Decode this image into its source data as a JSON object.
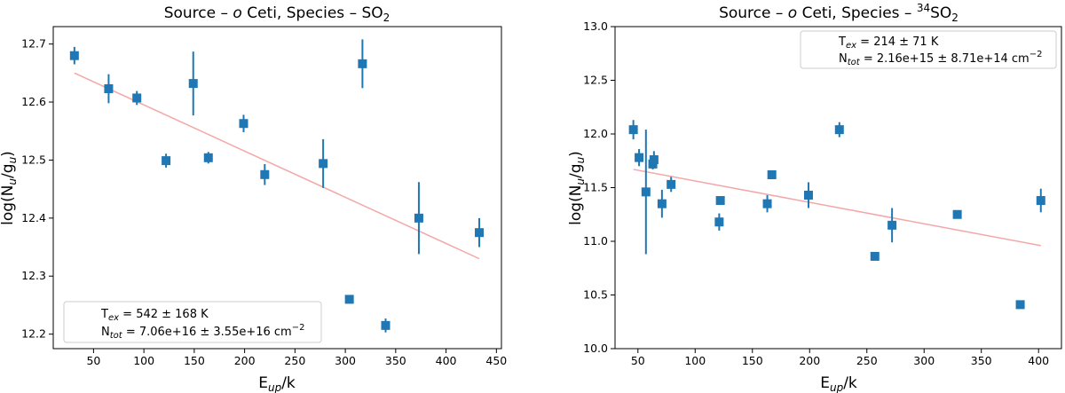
{
  "chart_data": [
    {
      "type": "scatter",
      "title": "Source – o Ceti, Species – SO2",
      "title_parts": {
        "prefix": "Source – ",
        "source": "o",
        "middle": " Ceti, Species – ",
        "species_sup": "",
        "species_main": "SO",
        "species_sub": "2"
      },
      "xlabel": "E_up/k",
      "xlabel_parts": {
        "main": "E",
        "sub": "up",
        "rest": "/k"
      },
      "ylabel": "log(N_u/g_u)",
      "ylabel_parts": {
        "a": "log(N",
        "sub1": "u",
        "b": "/g",
        "sub2": "u",
        "c": ")"
      },
      "xlim": [
        10,
        455
      ],
      "ylim": [
        12.175,
        12.73
      ],
      "xticks": [
        50,
        100,
        150,
        200,
        250,
        300,
        350,
        400,
        450
      ],
      "xtick_labels": [
        "50",
        "100",
        "150",
        "200",
        "250",
        "300",
        "350",
        "400",
        "450"
      ],
      "yticks": [
        12.2,
        12.3,
        12.4,
        12.5,
        12.6,
        12.7
      ],
      "ytick_labels": [
        "12.2",
        "12.3",
        "12.4",
        "12.5",
        "12.6",
        "12.7"
      ],
      "points": [
        {
          "x": 31,
          "y": 12.68,
          "err": 0.015
        },
        {
          "x": 65,
          "y": 12.623,
          "err": 0.025
        },
        {
          "x": 93,
          "y": 12.607,
          "err": 0.012
        },
        {
          "x": 122,
          "y": 12.499,
          "err": 0.012
        },
        {
          "x": 149,
          "y": 12.632,
          "err": 0.055
        },
        {
          "x": 164,
          "y": 12.504,
          "err": 0.01
        },
        {
          "x": 199,
          "y": 12.563,
          "err": 0.015
        },
        {
          "x": 220,
          "y": 12.475,
          "err": 0.018
        },
        {
          "x": 278,
          "y": 12.494,
          "err": 0.042
        },
        {
          "x": 304,
          "y": 12.26,
          "err": 0.0
        },
        {
          "x": 317,
          "y": 12.666,
          "err": 0.042
        },
        {
          "x": 340,
          "y": 12.215,
          "err": 0.012
        },
        {
          "x": 373,
          "y": 12.4,
          "err": 0.062
        },
        {
          "x": 433,
          "y": 12.375,
          "err": 0.025
        }
      ],
      "fit_line": {
        "x": [
          31,
          433
        ],
        "y": [
          12.65,
          12.33
        ]
      },
      "legend_location": "lower-left",
      "legend": {
        "tex": {
          "label": "T",
          "sub": "ex",
          "value": " = 542 ± 168 K"
        },
        "ntot": {
          "label": "N",
          "sub": "tot",
          "value": " = 7.06e+16 ± 3.55e+16 cm",
          "sup": "−2"
        }
      }
    },
    {
      "type": "scatter",
      "title": "Source – o Ceti, Species – 34SO2",
      "title_parts": {
        "prefix": "Source – ",
        "source": "o",
        "middle": " Ceti, Species – ",
        "species_sup": "34",
        "species_main": "SO",
        "species_sub": "2"
      },
      "xlabel": "E_up/k",
      "xlabel_parts": {
        "main": "E",
        "sub": "up",
        "rest": "/k"
      },
      "ylabel": "log(N_u/g_u)",
      "ylabel_parts": {
        "a": "log(N",
        "sub1": "u",
        "b": "/g",
        "sub2": "u",
        "c": ")"
      },
      "xlim": [
        30,
        420
      ],
      "ylim": [
        10.0,
        13.0
      ],
      "xticks": [
        50,
        100,
        150,
        200,
        250,
        300,
        350,
        400
      ],
      "xtick_labels": [
        "50",
        "100",
        "150",
        "200",
        "250",
        "300",
        "350",
        "400"
      ],
      "yticks": [
        10.0,
        10.5,
        11.0,
        11.5,
        12.0,
        12.5,
        13.0
      ],
      "ytick_labels": [
        "10.0",
        "10.5",
        "11.0",
        "11.5",
        "12.0",
        "12.5",
        "13.0"
      ],
      "points": [
        {
          "x": 46,
          "y": 12.04,
          "err": 0.09
        },
        {
          "x": 51,
          "y": 11.78,
          "err": 0.08
        },
        {
          "x": 57,
          "y": 11.46,
          "err": 0.58
        },
        {
          "x": 63,
          "y": 11.72,
          "err": 0.05
        },
        {
          "x": 64,
          "y": 11.76,
          "err": 0.08
        },
        {
          "x": 71,
          "y": 11.35,
          "err": 0.13
        },
        {
          "x": 79,
          "y": 11.53,
          "err": 0.07
        },
        {
          "x": 121,
          "y": 11.18,
          "err": 0.08
        },
        {
          "x": 122,
          "y": 11.38,
          "err": 0.04
        },
        {
          "x": 163,
          "y": 11.35,
          "err": 0.08
        },
        {
          "x": 167,
          "y": 11.62,
          "err": 0.03
        },
        {
          "x": 199,
          "y": 11.43,
          "err": 0.12
        },
        {
          "x": 226,
          "y": 12.04,
          "err": 0.07
        },
        {
          "x": 257,
          "y": 10.86,
          "err": 0.0
        },
        {
          "x": 272,
          "y": 11.15,
          "err": 0.16
        },
        {
          "x": 329,
          "y": 11.25,
          "err": 0.0
        },
        {
          "x": 384,
          "y": 10.41,
          "err": 0.0
        },
        {
          "x": 402,
          "y": 11.38,
          "err": 0.11
        }
      ],
      "fit_line": {
        "x": [
          46,
          402
        ],
        "y": [
          11.67,
          10.96
        ]
      },
      "legend_location": "upper-right",
      "legend": {
        "tex": {
          "label": "T",
          "sub": "ex",
          "value": " = 214 ± 71 K"
        },
        "ntot": {
          "label": "N",
          "sub": "tot",
          "value": " = 2.16e+15 ± 8.71e+14 cm",
          "sup": "−2"
        }
      }
    }
  ],
  "colors": {
    "marker": "#1f77b4",
    "fit": "#f4a7a7",
    "axis": "#000000",
    "legend_edge": "#cccccc"
  }
}
